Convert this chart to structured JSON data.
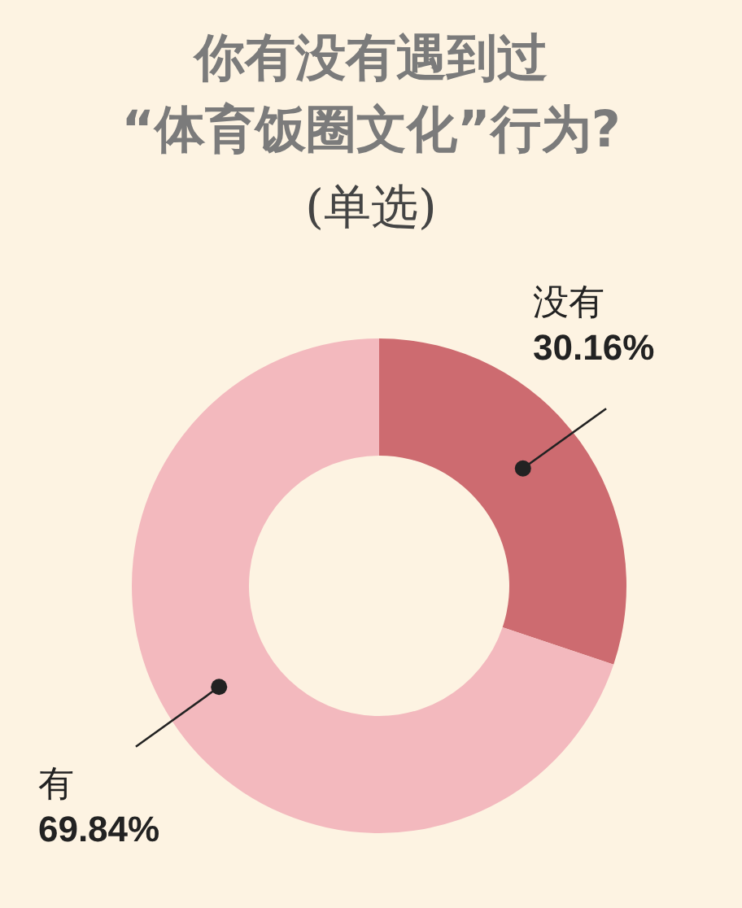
{
  "chart_data": {
    "type": "donut",
    "title": "你有没有遇到过\n“体育饭圈文化”行为?",
    "subtitle": "(单选)",
    "categories": [
      "没有",
      "有"
    ],
    "values": [
      30.16,
      69.84
    ],
    "colors": [
      "#cd6b70",
      "#f3b9be"
    ],
    "value_labels": [
      "30.16%",
      "69.84%"
    ],
    "legend": false
  }
}
